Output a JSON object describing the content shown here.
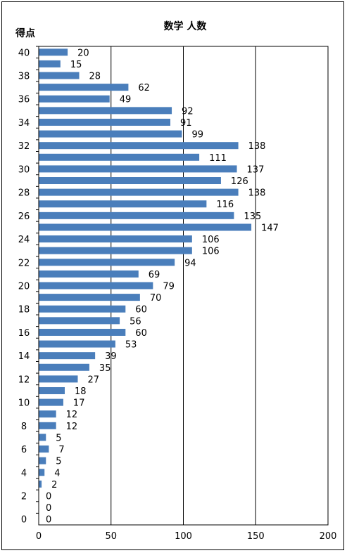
{
  "chart_data": {
    "type": "bar",
    "orientation": "horizontal",
    "title": "数学 人数",
    "ylabel": "得点",
    "xlabel": "",
    "xlim": [
      0,
      200
    ],
    "x_ticks": [
      "0",
      "50",
      "100",
      "150",
      "200"
    ],
    "y_ticks": [
      "40",
      "38",
      "36",
      "34",
      "32",
      "30",
      "28",
      "26",
      "24",
      "22",
      "20",
      "18",
      "16",
      "14",
      "12",
      "10",
      "8",
      "6",
      "4",
      "2",
      "0"
    ],
    "grid": "vertical lines",
    "legend": "none",
    "bar_color": "#4a7ebb",
    "categories": [
      40,
      39,
      38,
      37,
      36,
      35,
      34,
      33,
      32,
      31,
      30,
      29,
      28,
      27,
      26,
      25,
      24,
      23,
      22,
      21,
      20,
      19,
      18,
      17,
      16,
      15,
      14,
      13,
      12,
      11,
      10,
      9,
      8,
      7,
      6,
      5,
      4,
      3,
      2,
      1,
      0
    ],
    "values": [
      20,
      15,
      28,
      62,
      49,
      92,
      91,
      99,
      138,
      111,
      137,
      126,
      138,
      116,
      135,
      147,
      106,
      106,
      94,
      69,
      79,
      70,
      60,
      56,
      60,
      53,
      39,
      35,
      27,
      18,
      17,
      12,
      12,
      5,
      7,
      5,
      4,
      2,
      0,
      0,
      0
    ]
  }
}
